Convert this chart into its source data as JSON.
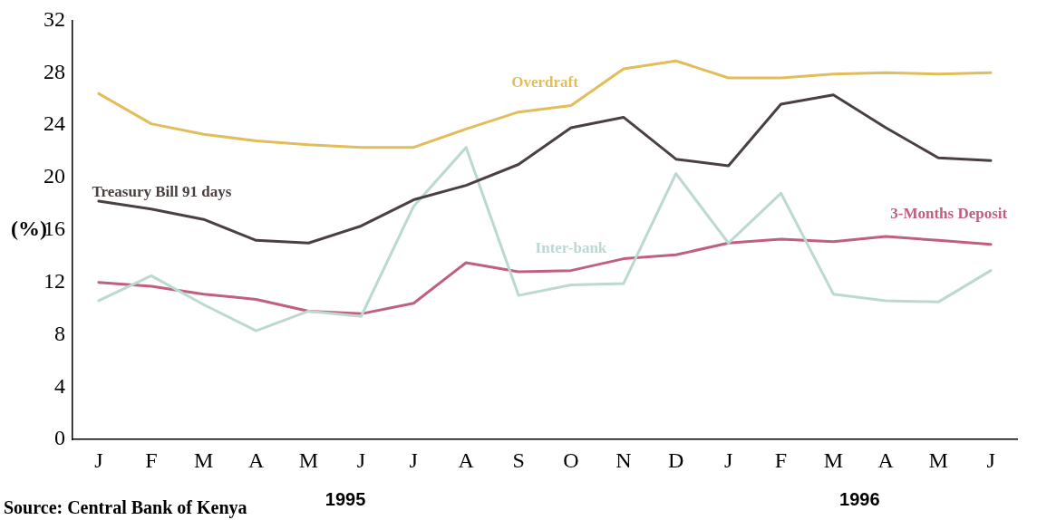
{
  "chart_data": {
    "type": "line",
    "ylabel": "(%)",
    "categories": [
      "J",
      "F",
      "M",
      "A",
      "M",
      "J",
      "J",
      "A",
      "S",
      "O",
      "N",
      "D",
      "J",
      "F",
      "M",
      "A",
      "M",
      "J"
    ],
    "series": [
      {
        "name": "Overdraft",
        "color": "#e2bd5c",
        "values": [
          26.4,
          24.1,
          23.3,
          22.8,
          22.5,
          22.3,
          22.3,
          23.7,
          25,
          25.5,
          28.3,
          28.9,
          27.6,
          27.6,
          27.9,
          28,
          27.9,
          28
        ]
      },
      {
        "name": "Treasury Bill 91 days",
        "color": "#4a4040",
        "values": [
          18.2,
          17.6,
          16.8,
          15.2,
          15,
          16.3,
          18.3,
          19.4,
          21,
          23.8,
          24.6,
          21.4,
          20.9,
          25.6,
          26.3,
          23.8,
          21.5,
          21.3
        ]
      },
      {
        "name": "Inter-bank",
        "color": "#bcd8d2",
        "values": [
          10.6,
          12.5,
          10.3,
          8.3,
          9.8,
          9.4,
          17.8,
          22.3,
          11,
          11.8,
          11.9,
          20.3,
          15,
          18.8,
          11.1,
          10.6,
          10.5,
          12.9
        ]
      },
      {
        "name": "3-Months Deposit",
        "color": "#c06080",
        "values": [
          12,
          11.7,
          11.1,
          10.7,
          9.8,
          9.6,
          10.4,
          13.5,
          12.8,
          12.9,
          13.8,
          14.1,
          15,
          15.3,
          15.1,
          15.5,
          15.2,
          14.9
        ]
      }
    ],
    "ylim": [
      0,
      32
    ],
    "yticks": [
      0,
      4,
      8,
      12,
      16,
      20,
      24,
      28,
      32
    ],
    "grid": false,
    "legend": false,
    "marker": "none",
    "line_style": "solid",
    "annotations": [
      "1995",
      "1996",
      "Source: Central Bank of Kenya"
    ]
  }
}
